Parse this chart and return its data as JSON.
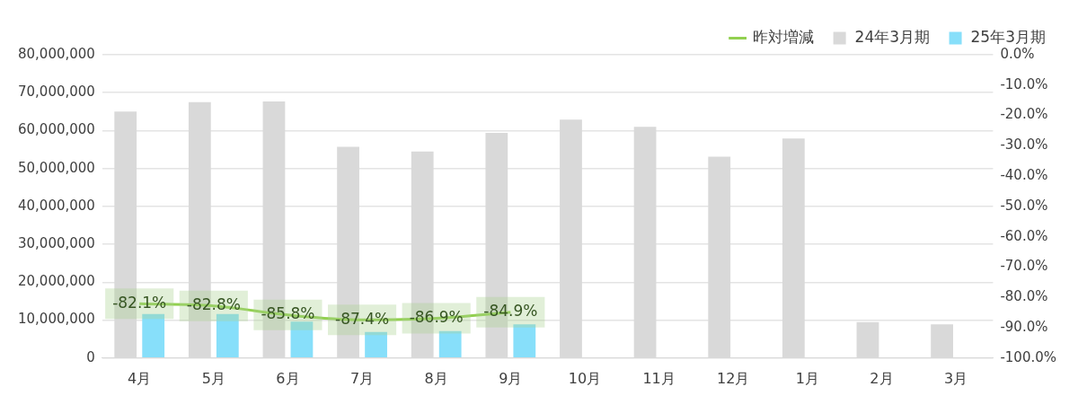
{
  "chart_data": {
    "type": "bar",
    "categories": [
      "4月",
      "5月",
      "6月",
      "7月",
      "8月",
      "9月",
      "10月",
      "11月",
      "12月",
      "1月",
      "2月",
      "3月"
    ],
    "series": [
      {
        "name": "24年3月期",
        "color": "#d9d9d9",
        "values": [
          65000000,
          67500000,
          67700000,
          55700000,
          54500000,
          59400000,
          62900000,
          61000000,
          53100000,
          57900000,
          9500000,
          8900000
        ]
      },
      {
        "name": "25年3月期",
        "color": "#87dffa",
        "values": [
          11600000,
          11600000,
          9600000,
          6900000,
          7100000,
          8900000,
          null,
          null,
          null,
          null,
          null,
          null
        ]
      },
      {
        "name": "昨対増減",
        "type": "line",
        "axis": "y2",
        "color": "#92d050",
        "values": [
          -82.1,
          -82.8,
          -85.8,
          -87.4,
          -86.9,
          -84.9,
          null,
          null,
          null,
          null,
          null,
          null
        ],
        "value_labels": [
          "-82.1%",
          "-82.8%",
          "-85.8%",
          "-87.4%",
          "-86.9%",
          "-84.9%",
          null,
          null,
          null,
          null,
          null,
          null
        ]
      }
    ],
    "ylim": [
      0,
      80000000
    ],
    "yticks": [
      {
        "value": 0,
        "label": "0"
      },
      {
        "value": 10000000,
        "label": "10,000,000"
      },
      {
        "value": 20000000,
        "label": "20,000,000"
      },
      {
        "value": 30000000,
        "label": "30,000,000"
      },
      {
        "value": 40000000,
        "label": "40,000,000"
      },
      {
        "value": 50000000,
        "label": "50,000,000"
      },
      {
        "value": 60000000,
        "label": "60,000,000"
      },
      {
        "value": 70000000,
        "label": "70,000,000"
      },
      {
        "value": 80000000,
        "label": "80,000,000"
      }
    ],
    "y2lim": [
      -100,
      0
    ],
    "y2ticks": [
      {
        "value": -100,
        "label": "-100.0%"
      },
      {
        "value": -90,
        "label": "-90.0%"
      },
      {
        "value": -80,
        "label": "-80.0%"
      },
      {
        "value": -70,
        "label": "-70.0%"
      },
      {
        "value": -60,
        "label": "-60.0%"
      },
      {
        "value": -50,
        "label": "-50.0%"
      },
      {
        "value": -40,
        "label": "-40.0%"
      },
      {
        "value": -30,
        "label": "-30.0%"
      },
      {
        "value": -20,
        "label": "-20.0%"
      },
      {
        "value": -10,
        "label": "-10.0%"
      },
      {
        "value": 0,
        "label": "0.0%"
      }
    ],
    "grid": "y",
    "legend": "top right"
  }
}
